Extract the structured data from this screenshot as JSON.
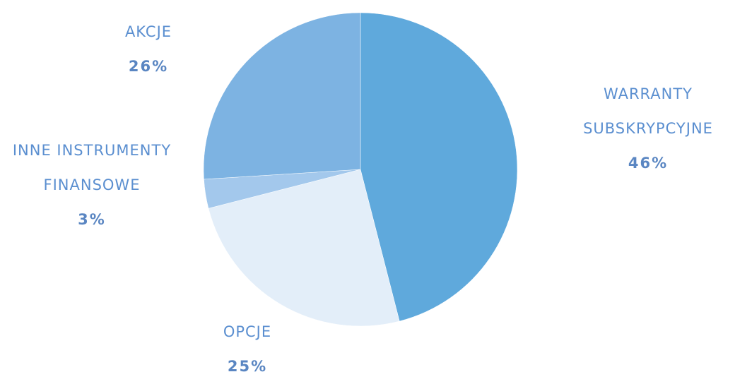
{
  "chart_data": {
    "type": "pie",
    "categories": [
      "WARRANTY SUBSKRYPCYJNE",
      "OPCJE",
      "INNE INSTRUMENTY FINANSOWE",
      "AKCJE"
    ],
    "values": [
      46,
      25,
      3,
      26
    ],
    "value_labels": [
      "46%",
      "25%",
      "3%",
      "26%"
    ],
    "colors": [
      "#5fa9dc",
      "#e3eef9",
      "#a3c8ec",
      "#7db3e2"
    ]
  }
}
